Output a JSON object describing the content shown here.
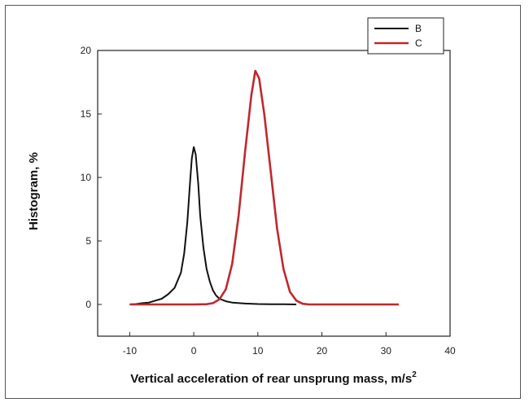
{
  "chart_data": {
    "type": "line",
    "xlabel": "Vertical acceleration of rear unsprung mass, m/s",
    "xlabel_superscript": "2",
    "ylabel": "Histogram, %",
    "xlim": [
      -15,
      40
    ],
    "ylim": [
      -2.5,
      20
    ],
    "x_ticks": [
      -10,
      0,
      10,
      20,
      30,
      40
    ],
    "y_ticks": [
      0,
      5,
      10,
      15,
      20
    ],
    "grid": false,
    "legend_position": "top-right",
    "series": [
      {
        "name": "B",
        "color": "#111111",
        "points": [
          [
            -10,
            0
          ],
          [
            -9,
            0.03
          ],
          [
            -8,
            0.1
          ],
          [
            -7,
            0.15
          ],
          [
            -6,
            0.3
          ],
          [
            -5,
            0.45
          ],
          [
            -4,
            0.8
          ],
          [
            -3,
            1.3
          ],
          [
            -2,
            2.5
          ],
          [
            -1.5,
            4.0
          ],
          [
            -1,
            6.5
          ],
          [
            -0.6,
            9.5
          ],
          [
            -0.3,
            11.5
          ],
          [
            0,
            12.4
          ],
          [
            0.3,
            11.8
          ],
          [
            0.7,
            9.5
          ],
          [
            1,
            7.0
          ],
          [
            1.5,
            4.5
          ],
          [
            2,
            2.8
          ],
          [
            2.5,
            1.8
          ],
          [
            3,
            1.1
          ],
          [
            3.5,
            0.7
          ],
          [
            4,
            0.45
          ],
          [
            5,
            0.25
          ],
          [
            6,
            0.15
          ],
          [
            8,
            0.07
          ],
          [
            10,
            0.03
          ],
          [
            12,
            0.02
          ],
          [
            14,
            0.02
          ],
          [
            16,
            0
          ]
        ]
      },
      {
        "name": "C",
        "color": "#c0282d",
        "points": [
          [
            -10,
            0
          ],
          [
            0,
            0
          ],
          [
            2,
            0.02
          ],
          [
            3,
            0.1
          ],
          [
            4,
            0.4
          ],
          [
            5,
            1.2
          ],
          [
            6,
            3.2
          ],
          [
            7,
            7.0
          ],
          [
            8,
            12.0
          ],
          [
            9,
            16.5
          ],
          [
            9.6,
            18.4
          ],
          [
            10.2,
            17.8
          ],
          [
            11,
            15.0
          ],
          [
            12,
            10.5
          ],
          [
            13,
            6.0
          ],
          [
            14,
            2.8
          ],
          [
            15,
            1.0
          ],
          [
            16,
            0.3
          ],
          [
            17,
            0.05
          ],
          [
            18,
            0
          ],
          [
            32,
            0
          ]
        ]
      }
    ]
  }
}
